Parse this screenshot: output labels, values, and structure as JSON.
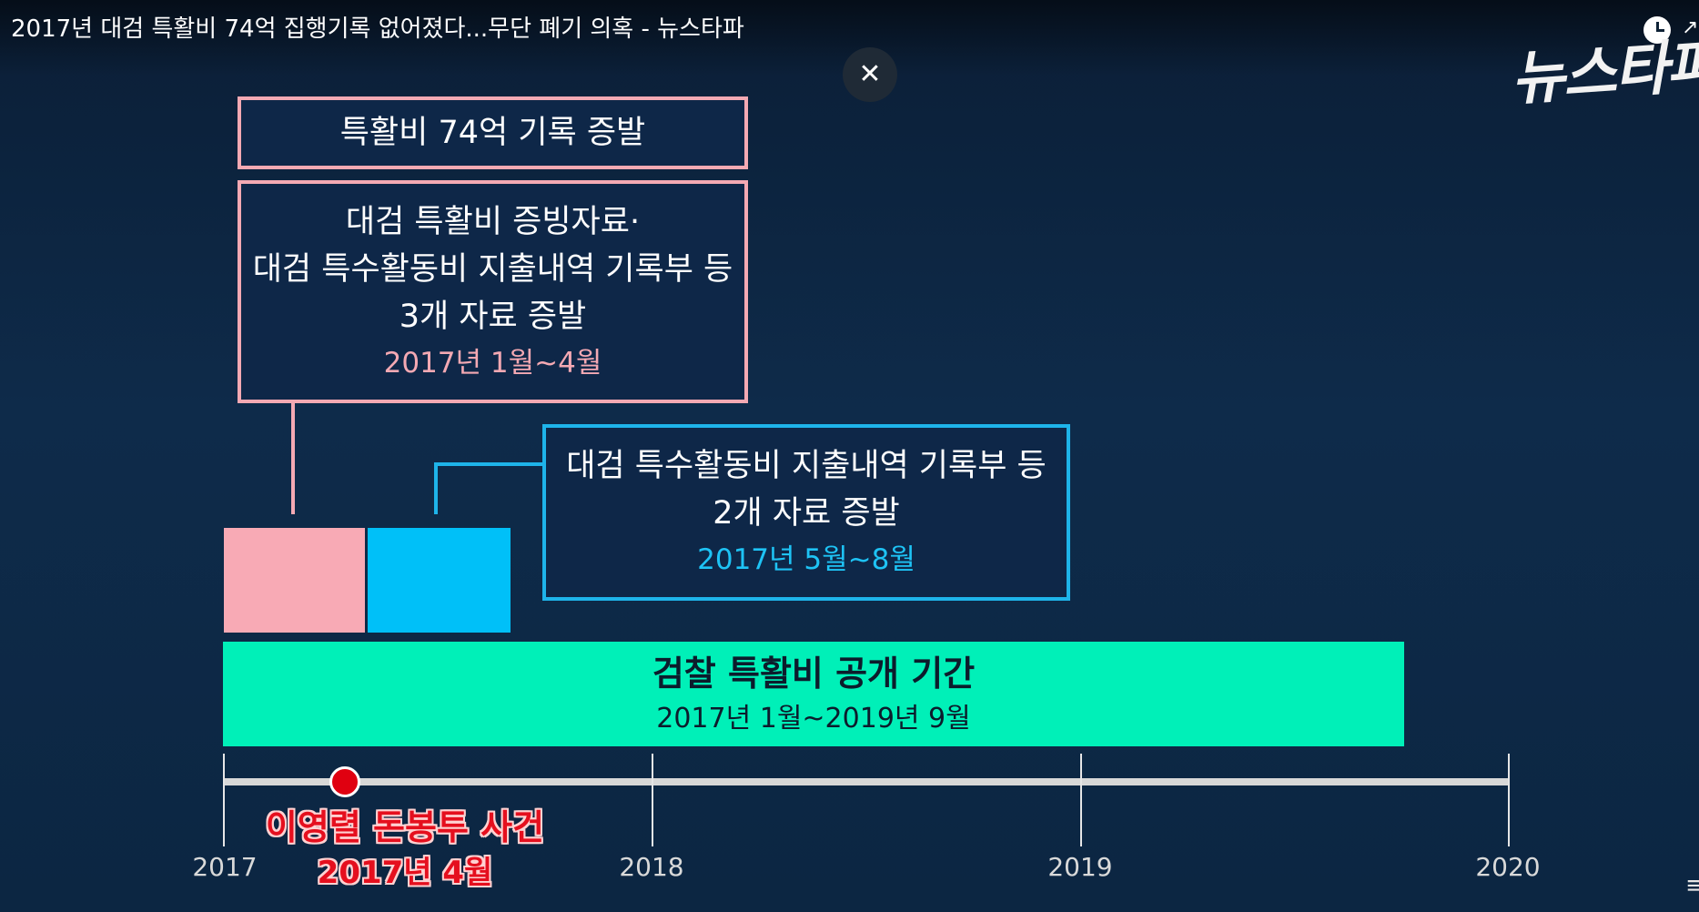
{
  "video": {
    "title": "2017년 대검 특활비 74억 집행기록 없어졌다...무단 폐기 의혹 - 뉴스타파"
  },
  "brand": {
    "logo_text": "뉴스타파"
  },
  "controls": {
    "close_symbol": "✕",
    "share_partial": "↗",
    "corner_partial": "≡"
  },
  "boxes": {
    "box1": {
      "text": "특활비 74억 기록 증발"
    },
    "box2": {
      "lines": [
        "대검 특활비 증빙자료·",
        "대검 특수활동비 지출내역 기록부 등",
        "3개 자료 증발"
      ],
      "date": "2017년 1월~4월"
    },
    "box3": {
      "lines": [
        "대검 특수활동비 지출내역 기록부 등",
        "2개 자료 증발"
      ],
      "date": "2017년 5월~8월"
    }
  },
  "period_bar": {
    "title": "검찰 특활비 공개 기간",
    "range": "2017년 1월~2019년 9월"
  },
  "timeline": {
    "years": [
      "2017",
      "2018",
      "2019",
      "2020"
    ],
    "event": {
      "label": "이영렬 돈봉투 사건",
      "date": "2017년 4월"
    }
  },
  "colors": {
    "background": "#0e2b4a",
    "pink": "#f8aab5",
    "blue": "#00c0f8",
    "green": "#00f0b8",
    "event_red": "#e00010"
  }
}
